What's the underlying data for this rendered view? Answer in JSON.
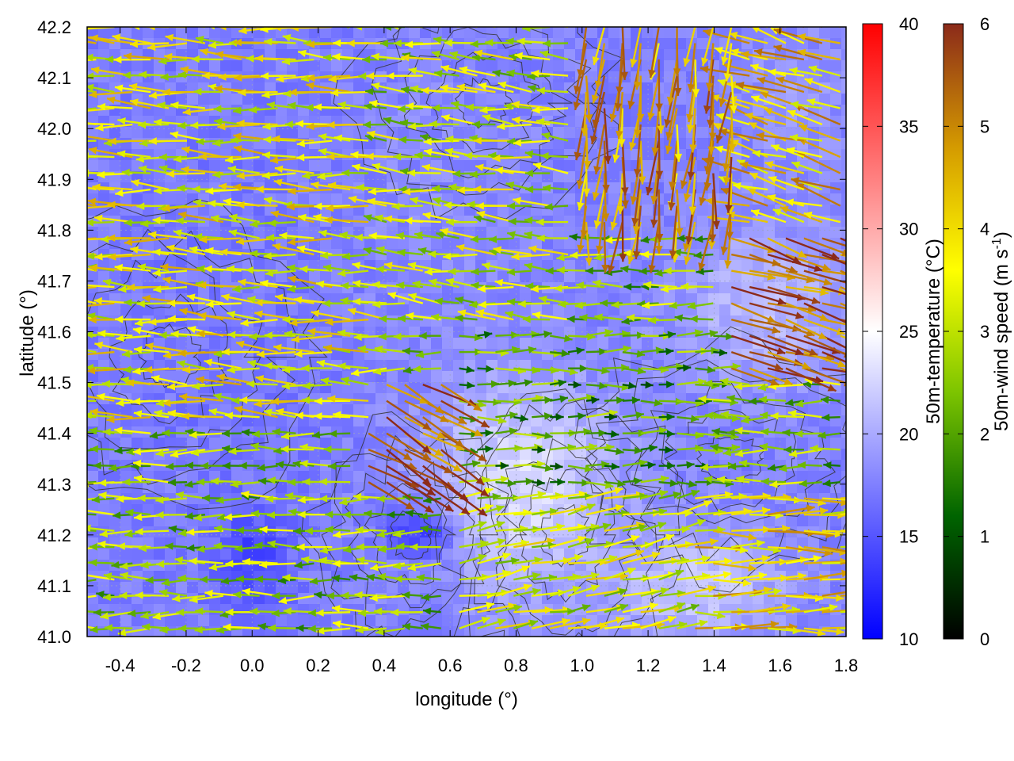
{
  "chart_data": {
    "type": "heatmap",
    "plot_kind": "temperature field with wind vectors and terrain contours",
    "title": "",
    "xlabel": "longitude (°)",
    "ylabel": "latitude (°)",
    "xlim": [
      -0.5,
      1.8
    ],
    "ylim": [
      41.0,
      42.2
    ],
    "x_ticks": [
      "-0.4",
      "-0.2",
      "0.0",
      "0.2",
      "0.4",
      "0.6",
      "0.8",
      "1.0",
      "1.2",
      "1.4",
      "1.6",
      "1.8"
    ],
    "y_ticks": [
      "41.0",
      "41.1",
      "41.2",
      "41.3",
      "41.4",
      "41.5",
      "41.6",
      "41.7",
      "41.8",
      "41.9",
      "42.0",
      "42.1",
      "42.2"
    ],
    "grid": true,
    "colorbars": [
      {
        "label": "50m-temperature (°C)",
        "range": [
          10,
          40
        ],
        "ticks": [
          "10",
          "15",
          "20",
          "25",
          "30",
          "35",
          "40"
        ],
        "colors": [
          "#0000ff",
          "#ffffff",
          "#ff0000"
        ]
      },
      {
        "label": "50m-wind speed (m s",
        "label_sup": "-1",
        "label_end": ")",
        "range": [
          0,
          6
        ],
        "ticks": [
          "0",
          "1",
          "2",
          "3",
          "4",
          "5",
          "6"
        ],
        "colors": [
          "#000000",
          "#006400",
          "#7cc400",
          "#ffff00",
          "#d49a00",
          "#8b2a1a"
        ]
      }
    ],
    "temperature_regions": [
      {
        "lon": [
          -0.5,
          0.3
        ],
        "lat": [
          41.0,
          42.2
        ],
        "temp_c": 17
      },
      {
        "lon": [
          0.3,
          0.9
        ],
        "lat": [
          41.6,
          42.2
        ],
        "temp_c": 18
      },
      {
        "lon": [
          0.55,
          1.1
        ],
        "lat": [
          41.1,
          41.5
        ],
        "temp_c": 23
      },
      {
        "lon": [
          1.1,
          1.6
        ],
        "lat": [
          41.0,
          41.2
        ],
        "temp_c": 22
      },
      {
        "lon": [
          1.3,
          1.8
        ],
        "lat": [
          41.5,
          41.8
        ],
        "temp_c": 21
      },
      {
        "lon": [
          0.4,
          0.6
        ],
        "lat": [
          41.15,
          41.25
        ],
        "temp_c": 14
      },
      {
        "lon": [
          -0.1,
          0.1
        ],
        "lat": [
          41.05,
          41.25
        ],
        "temp_c": 14
      },
      {
        "lon": [
          1.5,
          1.8
        ],
        "lat": [
          41.9,
          42.2
        ],
        "temp_c": 19
      }
    ],
    "wind_field": [
      {
        "lon": [
          -0.5,
          0.4
        ],
        "lat": [
          41.4,
          42.2
        ],
        "u": -1,
        "v": 0.05,
        "speed": 3.6
      },
      {
        "lon": [
          0.4,
          1.0
        ],
        "lat": [
          41.6,
          42.2
        ],
        "u": -1,
        "v": 0.1,
        "speed": 3.0
      },
      {
        "lon": [
          1.0,
          1.5
        ],
        "lat": [
          41.8,
          42.2
        ],
        "u": -0.1,
        "v": -1,
        "speed": 4.8
      },
      {
        "lon": [
          1.5,
          1.8
        ],
        "lat": [
          41.8,
          42.2
        ],
        "u": -1,
        "v": 0.3,
        "speed": 4.2
      },
      {
        "lon": [
          0.6,
          1.4
        ],
        "lat": [
          41.3,
          41.6
        ],
        "u": 1,
        "v": 0,
        "speed": 2.0
      },
      {
        "lon": [
          1.4,
          1.8
        ],
        "lat": [
          41.5,
          41.8
        ],
        "u": 1,
        "v": -0.3,
        "speed": 5.4
      },
      {
        "lon": [
          0.3,
          0.6
        ],
        "lat": [
          41.3,
          41.5
        ],
        "u": 1,
        "v": -0.6,
        "speed": 5.6
      },
      {
        "lon": [
          -0.5,
          0.4
        ],
        "lat": [
          41.0,
          41.4
        ],
        "u": -1,
        "v": 0.0,
        "speed": 2.6
      },
      {
        "lon": [
          0.6,
          1.3
        ],
        "lat": [
          41.0,
          41.3
        ],
        "u": 1,
        "v": 0.2,
        "speed": 3.2
      },
      {
        "lon": [
          1.3,
          1.8
        ],
        "lat": [
          41.0,
          41.3
        ],
        "u": 1,
        "v": 0.0,
        "speed": 4.0
      }
    ],
    "terrain_contour_centers": [
      {
        "lon": 0.48,
        "lat": 41.2
      },
      {
        "lon": 0.95,
        "lat": 41.2
      },
      {
        "lon": 0.7,
        "lat": 42.05
      },
      {
        "lon": -0.25,
        "lat": 41.55
      },
      {
        "lon": 1.45,
        "lat": 41.35
      }
    ]
  }
}
